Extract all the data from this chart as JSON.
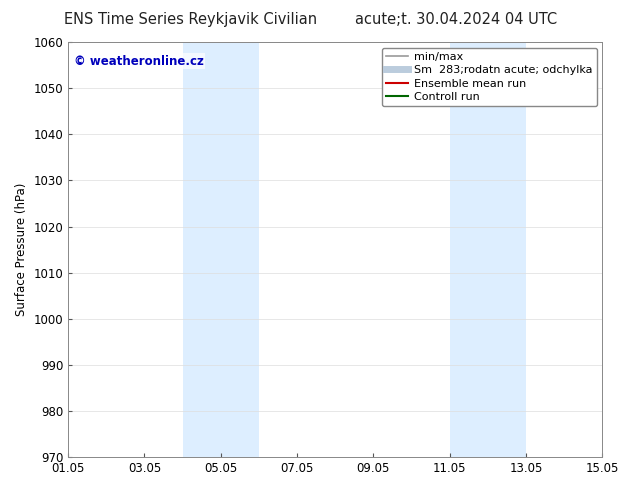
{
  "title_left": "ENS Time Series Reykjavik Civilian",
  "title_right": "acute;t. 30.04.2024 04 UTC",
  "ylabel": "Surface Pressure (hPa)",
  "ylim": [
    970,
    1060
  ],
  "yticks": [
    970,
    980,
    990,
    1000,
    1010,
    1020,
    1030,
    1040,
    1050,
    1060
  ],
  "xtick_labels": [
    "01.05",
    "03.05",
    "05.05",
    "07.05",
    "09.05",
    "11.05",
    "13.05",
    "15.05"
  ],
  "xtick_positions": [
    0,
    2,
    4,
    6,
    8,
    10,
    12,
    14
  ],
  "xlim": [
    0,
    14
  ],
  "shaded_regions": [
    {
      "x_start": 3.0,
      "x_end": 5.0,
      "color": "#ddeeff"
    },
    {
      "x_start": 10.0,
      "x_end": 12.0,
      "color": "#ddeeff"
    }
  ],
  "watermark_text": "© weatheronline.cz",
  "watermark_color": "#0000bb",
  "legend_entries": [
    {
      "label": "min/max",
      "color": "#999999",
      "lw": 1.2,
      "style": "solid"
    },
    {
      "label": "Sm  283;rodatn acute; odchylka",
      "color": "#bbccdd",
      "lw": 5,
      "style": "solid"
    },
    {
      "label": "Ensemble mean run",
      "color": "#cc0000",
      "lw": 1.5,
      "style": "solid"
    },
    {
      "label": "Controll run",
      "color": "#006600",
      "lw": 1.5,
      "style": "solid"
    }
  ],
  "bg_color": "#ffffff",
  "plot_bg_color": "#ffffff",
  "grid_color": "#dddddd",
  "tick_color": "#555555",
  "spine_color": "#888888",
  "font_size": 8.5,
  "tick_font_size": 8.5,
  "title_font_size": 10.5,
  "ylabel_font_size": 8.5,
  "watermark_font_size": 8.5,
  "legend_font_size": 8.0
}
